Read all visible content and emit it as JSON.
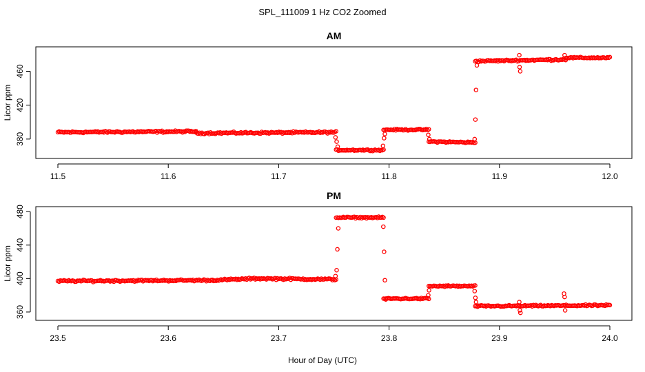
{
  "figure": {
    "title": "SPL_111009  1 Hz CO2 Zoomed",
    "xlabel": "Hour of Day (UTC)"
  },
  "colors": {
    "points": "#ff0000",
    "axes": "#000000"
  },
  "chart_data": [
    {
      "type": "scatter",
      "title": "AM",
      "ylabel": "Licor ppm",
      "xlim": [
        11.5,
        12.0
      ],
      "ylim": [
        362,
        484
      ],
      "xticks": [
        11.5,
        11.6,
        11.7,
        11.8,
        11.9,
        12.0
      ],
      "xtick_labels": [
        "11.5",
        "11.6",
        "11.7",
        "11.8",
        "11.9",
        "12.0"
      ],
      "yticks": [
        380,
        420,
        460
      ],
      "ytick_labels": [
        "380",
        "420",
        "460"
      ],
      "marker": "open-circle",
      "segments": [
        {
          "x": [
            11.5,
            11.625
          ],
          "y": [
            388,
            389
          ],
          "noise": 1.3
        },
        {
          "x": [
            11.625,
            11.752
          ],
          "y": [
            387,
            388
          ],
          "noise": 1.3
        },
        {
          "x": [
            11.752,
            11.795
          ],
          "y": [
            367,
            367
          ],
          "noise": 1.0
        },
        {
          "x": [
            11.795,
            11.836
          ],
          "y": [
            391,
            391
          ],
          "noise": 1.0
        },
        {
          "x": [
            11.836,
            11.878
          ],
          "y": [
            377,
            376
          ],
          "noise": 1.0
        },
        {
          "x": [
            11.878,
            11.96
          ],
          "y": [
            472,
            474
          ],
          "noise": 1.2
        },
        {
          "x": [
            11.96,
            12.0
          ],
          "y": [
            476,
            476
          ],
          "noise": 1.0
        }
      ],
      "transition_points": [
        {
          "x": 11.7515,
          "y": 382
        },
        {
          "x": 11.7525,
          "y": 377
        },
        {
          "x": 11.7535,
          "y": 371
        },
        {
          "x": 11.7945,
          "y": 372
        },
        {
          "x": 11.7955,
          "y": 381
        },
        {
          "x": 11.7962,
          "y": 386
        },
        {
          "x": 11.8355,
          "y": 385
        },
        {
          "x": 11.8365,
          "y": 380
        },
        {
          "x": 11.8775,
          "y": 380
        },
        {
          "x": 11.8782,
          "y": 403
        },
        {
          "x": 11.8788,
          "y": 438
        },
        {
          "x": 11.8795,
          "y": 467
        },
        {
          "x": 11.9182,
          "y": 465
        },
        {
          "x": 11.9188,
          "y": 460
        },
        {
          "x": 11.918,
          "y": 479
        },
        {
          "x": 11.959,
          "y": 479
        }
      ]
    },
    {
      "type": "scatter",
      "title": "PM",
      "ylabel": "Licor ppm",
      "xlim": [
        23.5,
        24.0
      ],
      "ylim": [
        355,
        481
      ],
      "xticks": [
        23.5,
        23.6,
        23.7,
        23.8,
        23.9,
        24.0
      ],
      "xtick_labels": [
        "23.5",
        "23.6",
        "23.7",
        "23.8",
        "23.9",
        "24.0"
      ],
      "yticks": [
        360,
        400,
        440,
        480
      ],
      "ytick_labels": [
        "360",
        "400",
        "440",
        "480"
      ],
      "marker": "open-circle",
      "segments": [
        {
          "x": [
            23.5,
            23.64
          ],
          "y": [
            397,
            398
          ],
          "noise": 1.3
        },
        {
          "x": [
            23.64,
            23.68
          ],
          "y": [
            398,
            400
          ],
          "noise": 1.3
        },
        {
          "x": [
            23.68,
            23.752
          ],
          "y": [
            400,
            399
          ],
          "noise": 1.3
        },
        {
          "x": [
            23.752,
            23.795
          ],
          "y": [
            473,
            473
          ],
          "noise": 1.0
        },
        {
          "x": [
            23.795,
            23.836
          ],
          "y": [
            376,
            376
          ],
          "noise": 1.0
        },
        {
          "x": [
            23.836,
            23.878
          ],
          "y": [
            391,
            391
          ],
          "noise": 1.0
        },
        {
          "x": [
            23.878,
            24.0
          ],
          "y": [
            367,
            368
          ],
          "noise": 1.1
        }
      ],
      "transition_points": [
        {
          "x": 23.7515,
          "y": 403
        },
        {
          "x": 23.7525,
          "y": 410
        },
        {
          "x": 23.7532,
          "y": 435
        },
        {
          "x": 23.754,
          "y": 460
        },
        {
          "x": 23.7948,
          "y": 462
        },
        {
          "x": 23.7955,
          "y": 432
        },
        {
          "x": 23.7962,
          "y": 398
        },
        {
          "x": 23.797,
          "y": 375
        },
        {
          "x": 23.8355,
          "y": 380
        },
        {
          "x": 23.8362,
          "y": 386
        },
        {
          "x": 23.8775,
          "y": 385
        },
        {
          "x": 23.8782,
          "y": 377
        },
        {
          "x": 23.8788,
          "y": 372
        },
        {
          "x": 23.918,
          "y": 372
        },
        {
          "x": 23.9185,
          "y": 362
        },
        {
          "x": 23.919,
          "y": 359
        },
        {
          "x": 23.9585,
          "y": 382
        },
        {
          "x": 23.959,
          "y": 378
        },
        {
          "x": 23.9595,
          "y": 362
        }
      ]
    }
  ]
}
